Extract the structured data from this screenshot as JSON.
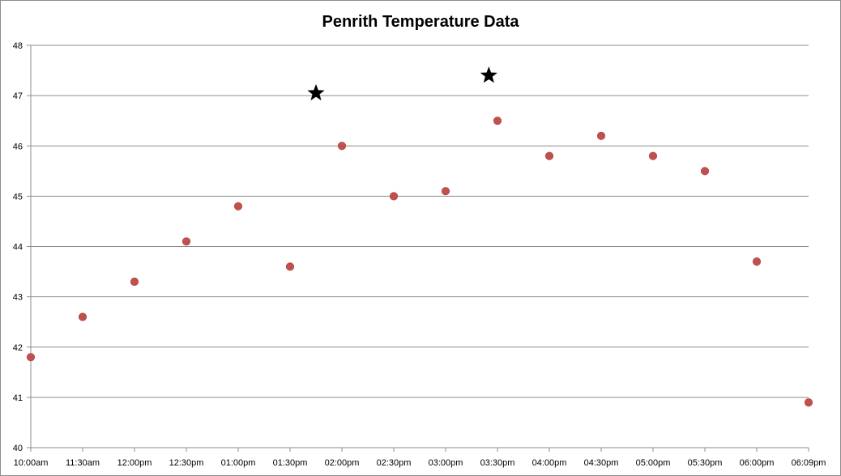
{
  "chart_data": {
    "type": "scatter",
    "title": "Penrith Temperature Data",
    "xlabel": "",
    "ylabel": "",
    "x_tick_labels": [
      "10:00am",
      "11:30am",
      "12:00pm",
      "12:30pm",
      "01:00pm",
      "01:30pm",
      "02:00pm",
      "02:30pm",
      "03:00pm",
      "03:30pm",
      "04:00pm",
      "04:30pm",
      "05:00pm",
      "05:30pm",
      "06:00pm",
      "06:09pm"
    ],
    "y_ticks": [
      "40",
      "41",
      "42",
      "43",
      "44",
      "45",
      "46",
      "47",
      "48"
    ],
    "ylim": [
      40,
      48
    ],
    "grid": "horizontal",
    "series": [
      {
        "marker": "circle",
        "color": "#c0504d",
        "x": [
          "10:00am",
          "11:30am",
          "12:00pm",
          "12:30pm",
          "01:00pm",
          "01:30pm",
          "02:00pm",
          "02:30pm",
          "03:00pm",
          "03:30pm",
          "04:00pm",
          "04:30pm",
          "05:00pm",
          "05:30pm",
          "06:00pm",
          "06:09pm"
        ],
        "values": [
          41.8,
          42.6,
          43.3,
          44.1,
          44.8,
          43.6,
          46.0,
          45.0,
          45.1,
          46.5,
          45.8,
          46.2,
          45.8,
          45.5,
          43.7,
          40.9
        ]
      },
      {
        "marker": "star",
        "color": "#000000",
        "x": [
          "01:45pm",
          "03:25pm"
        ],
        "values": [
          47.05,
          47.4
        ]
      }
    ]
  }
}
